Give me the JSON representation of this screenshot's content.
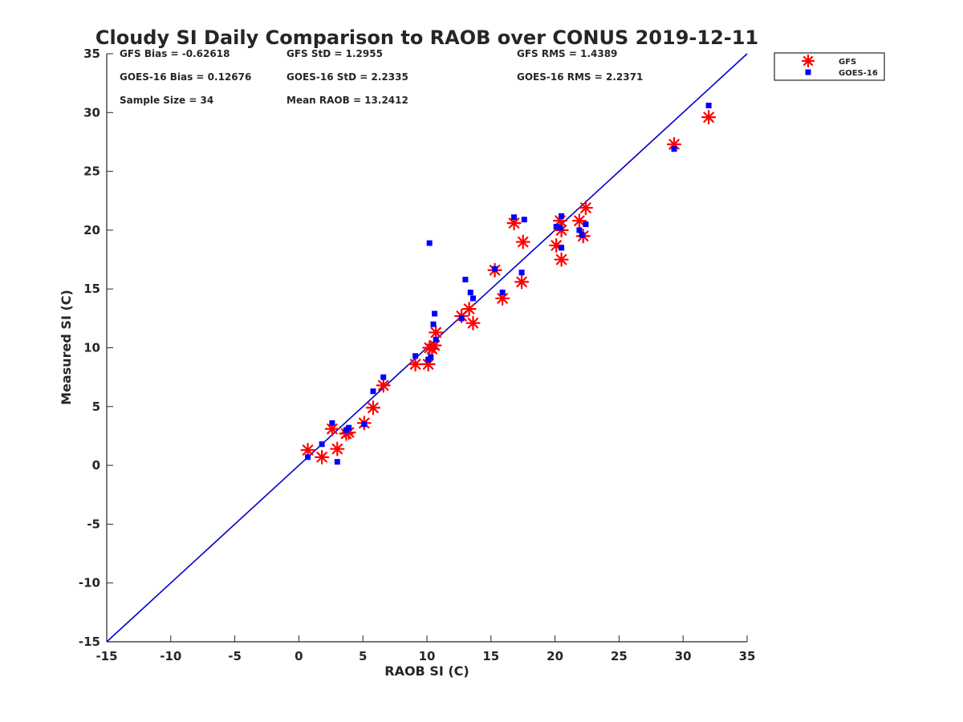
{
  "chart_data": {
    "type": "scatter",
    "title": "Cloudy SI Daily Comparison to RAOB over CONUS 2019-12-11",
    "xlabel": "RAOB SI (C)",
    "ylabel": "Measured SI (C)",
    "xlim": [
      -15,
      35
    ],
    "ylim": [
      -15,
      35
    ],
    "xticks": [
      -15,
      -10,
      -5,
      0,
      5,
      10,
      15,
      20,
      25,
      30,
      35
    ],
    "yticks": [
      -15,
      -10,
      -5,
      0,
      5,
      10,
      15,
      20,
      25,
      30,
      35
    ],
    "grid": false,
    "legend_position": "top-right outside",
    "reference_line": {
      "type": "one-to-one",
      "color": "#0000CC"
    },
    "stats": [
      [
        "GFS Bias = -0.62618",
        "GFS StD = 1.2955",
        "GFS RMS = 1.4389"
      ],
      [
        "GOES-16 Bias = 0.12676",
        "GOES-16 StD = 2.2335",
        "GOES-16 RMS = 2.2371"
      ],
      [
        "Sample Size = 34",
        "Mean RAOB = 13.2412",
        ""
      ]
    ],
    "series": [
      {
        "name": "GFS",
        "marker": "asterisk",
        "color": "#FF0000",
        "points": [
          [
            0.7,
            1.3
          ],
          [
            1.8,
            0.7
          ],
          [
            2.6,
            3.1
          ],
          [
            3.0,
            1.4
          ],
          [
            3.7,
            2.7
          ],
          [
            3.9,
            2.8
          ],
          [
            5.1,
            3.6
          ],
          [
            5.8,
            4.9
          ],
          [
            6.6,
            6.8
          ],
          [
            9.1,
            8.6
          ],
          [
            10.1,
            8.6
          ],
          [
            10.2,
            10.0
          ],
          [
            10.4,
            9.9
          ],
          [
            10.6,
            10.2
          ],
          [
            10.7,
            11.3
          ],
          [
            12.7,
            12.7
          ],
          [
            13.3,
            13.3
          ],
          [
            13.6,
            12.1
          ],
          [
            15.3,
            16.6
          ],
          [
            15.9,
            14.2
          ],
          [
            16.8,
            20.6
          ],
          [
            17.4,
            15.6
          ],
          [
            17.5,
            19.0
          ],
          [
            20.1,
            18.7
          ],
          [
            20.4,
            20.8
          ],
          [
            20.5,
            20.0
          ],
          [
            20.5,
            17.5
          ],
          [
            21.9,
            20.8
          ],
          [
            22.2,
            19.5
          ],
          [
            22.4,
            21.9
          ],
          [
            29.3,
            27.3
          ],
          [
            32.0,
            29.6
          ]
        ]
      },
      {
        "name": "GOES-16",
        "marker": "square",
        "color": "#0000FF",
        "points": [
          [
            0.7,
            0.7
          ],
          [
            1.8,
            1.8
          ],
          [
            2.6,
            3.6
          ],
          [
            3.0,
            0.3
          ],
          [
            3.7,
            3.0
          ],
          [
            3.9,
            3.2
          ],
          [
            5.1,
            3.5
          ],
          [
            5.8,
            6.3
          ],
          [
            6.6,
            7.5
          ],
          [
            9.1,
            9.3
          ],
          [
            10.1,
            9.0
          ],
          [
            10.2,
            18.9
          ],
          [
            10.3,
            9.2
          ],
          [
            10.5,
            12.0
          ],
          [
            10.6,
            12.9
          ],
          [
            10.7,
            10.7
          ],
          [
            12.7,
            12.5
          ],
          [
            13.0,
            15.8
          ],
          [
            13.4,
            14.7
          ],
          [
            13.6,
            14.2
          ],
          [
            15.3,
            16.7
          ],
          [
            15.9,
            14.7
          ],
          [
            16.8,
            21.1
          ],
          [
            17.4,
            16.4
          ],
          [
            17.6,
            20.9
          ],
          [
            20.1,
            20.3
          ],
          [
            20.4,
            20.2
          ],
          [
            20.5,
            18.5
          ],
          [
            20.5,
            21.2
          ],
          [
            21.9,
            20.0
          ],
          [
            22.1,
            19.6
          ],
          [
            22.4,
            20.5
          ],
          [
            29.3,
            26.9
          ],
          [
            32.0,
            30.6
          ]
        ]
      }
    ]
  }
}
